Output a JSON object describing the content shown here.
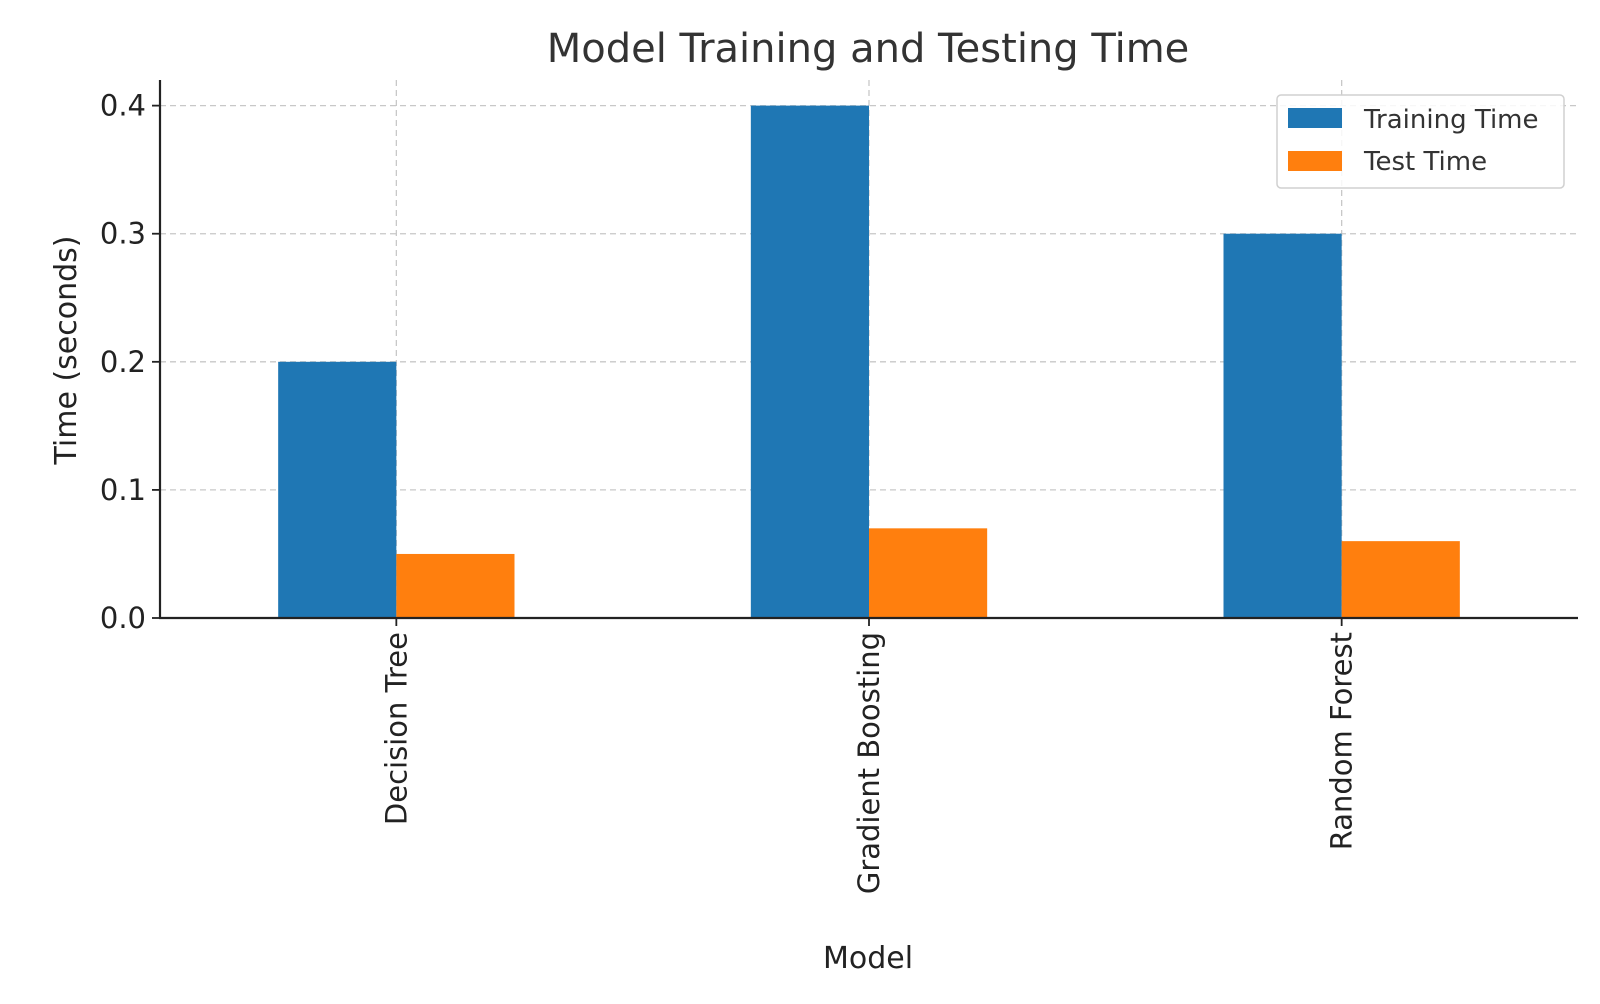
{
  "chart_data": {
    "type": "bar",
    "title": "Model Training and Testing Time",
    "xlabel": "Model",
    "ylabel": "Time (seconds)",
    "categories": [
      "Decision Tree",
      "Gradient Boosting",
      "Random Forest"
    ],
    "series": [
      {
        "name": "Training Time",
        "values": [
          0.2,
          0.4,
          0.3
        ],
        "color": "#1f77b4"
      },
      {
        "name": "Test Time",
        "values": [
          0.05,
          0.07,
          0.06
        ],
        "color": "#ff7f0e"
      }
    ],
    "ylim": [
      0,
      0.42
    ],
    "yticks": [
      0.0,
      0.1,
      0.2,
      0.3,
      0.4
    ],
    "ytick_labels": [
      "0.0",
      "0.1",
      "0.2",
      "0.3",
      "0.4"
    ],
    "grid": true,
    "legend_position": "top-right"
  }
}
